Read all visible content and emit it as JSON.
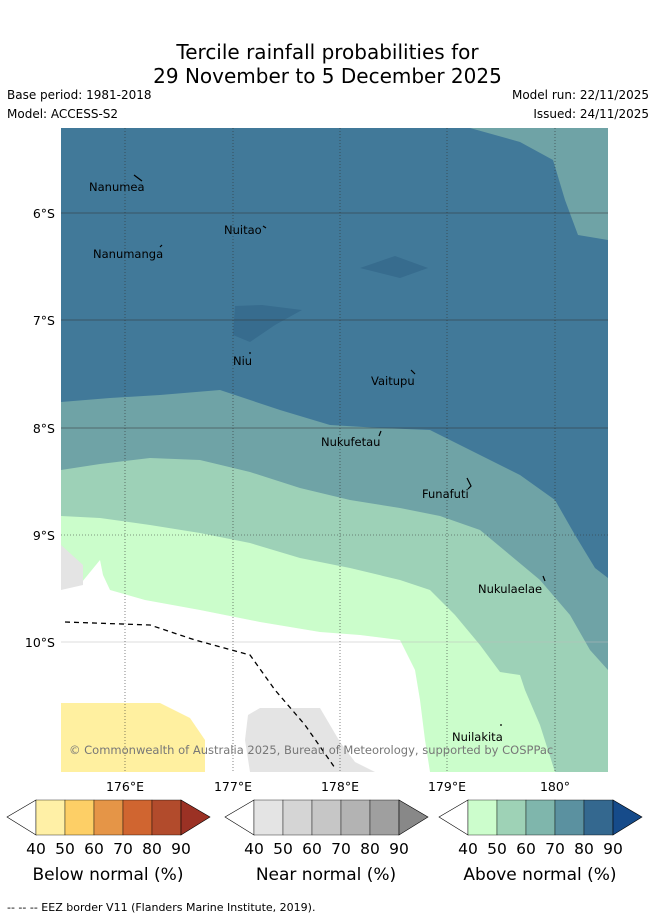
{
  "header": {
    "title_line1": "Tercile rainfall probabilities for",
    "title_line2": "29 November to 5 December 2025",
    "base_period": "Base period: 1981-2018",
    "model": "Model: ACCESS-S2",
    "model_run": "Model run: 22/11/2025",
    "issued": "Issued: 24/11/2025"
  },
  "map": {
    "lat_labels": [
      "6°S",
      "7°S",
      "8°S",
      "9°S",
      "10°S"
    ],
    "lon_labels": [
      "176°E",
      "177°E",
      "178°E",
      "179°E",
      "180°"
    ],
    "islands": [
      "Nanumea",
      "Nuitao",
      "Nanumanga",
      "Niu",
      "Vaitupu",
      "Nukufetau",
      "Funafuti",
      "Nukulaelae",
      "Nuilakita"
    ],
    "copyright": "© Commonwealth of Australia 2025, Bureau of Meteorology, supported by COSPPac"
  },
  "legends": [
    {
      "label": "Below normal (%)",
      "ticks": [
        "40",
        "50",
        "60",
        "70",
        "80",
        "90"
      ],
      "colors": [
        "#ffffff",
        "#fff0a6",
        "#fdcf66",
        "#e59547",
        "#d06530",
        "#b24b2c",
        "#9b3124"
      ]
    },
    {
      "label": "Near normal (%)",
      "ticks": [
        "40",
        "50",
        "60",
        "70",
        "80",
        "90"
      ],
      "colors": [
        "#ffffff",
        "#e4e4e4",
        "#d5d5d5",
        "#c6c6c6",
        "#b3b3b3",
        "#9f9f9f",
        "#888888"
      ]
    },
    {
      "label": "Above normal (%)",
      "ticks": [
        "40",
        "50",
        "60",
        "70",
        "80",
        "90"
      ],
      "colors": [
        "#ffffff",
        "#ccfdcc",
        "#9ed2b6",
        "#7fb6ac",
        "#5b91a0",
        "#34688f",
        "#164b8a"
      ]
    }
  ],
  "footer": {
    "eez_note": "-- -- -- EEZ border V11 (Flanders Marine Institute, 2019)."
  }
}
